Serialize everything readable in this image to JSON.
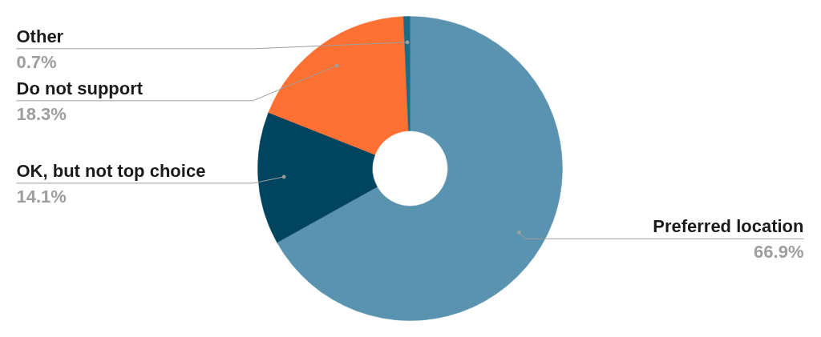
{
  "chart_data": {
    "type": "donut",
    "categories": [
      "Preferred location",
      "OK, but not top choice",
      "Do not support",
      "Other"
    ],
    "values": [
      66.9,
      14.1,
      18.3,
      0.7
    ],
    "value_labels": [
      "66.9%",
      "14.1%",
      "18.3%",
      "0.7%"
    ],
    "colors": [
      "#5a93b0",
      "#00445f",
      "#ff7033",
      "#1b6b85"
    ]
  }
}
